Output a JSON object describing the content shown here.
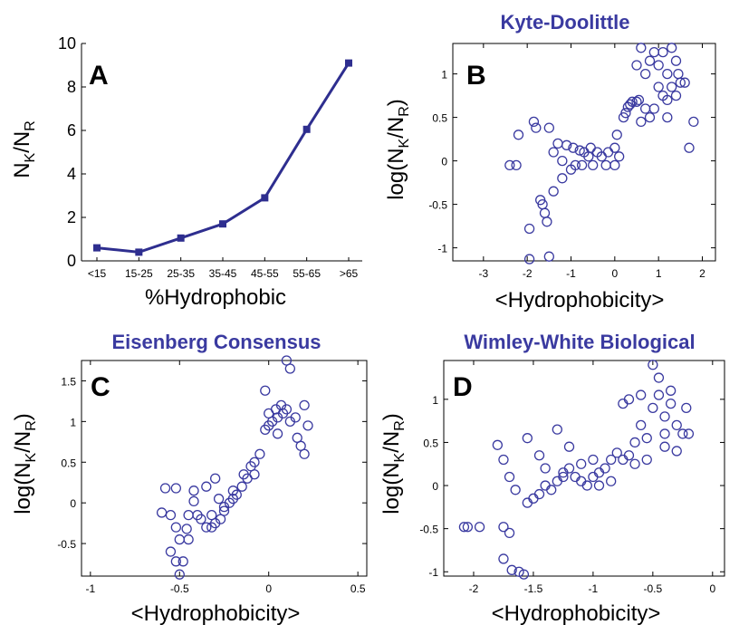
{
  "chart_data": [
    {
      "panel": "A",
      "type": "line",
      "title": "",
      "xlabel": "%Hydrophobic",
      "ylabel_main": "N",
      "ylabel_sub1": "K",
      "ylabel_sep": "/N",
      "ylabel_sub2": "R",
      "categories": [
        "<15",
        "15-25",
        "25-35",
        "35-45",
        "45-55",
        "55-65",
        ">65"
      ],
      "values": [
        0.6,
        0.4,
        1.05,
        1.7,
        2.9,
        6.05,
        9.1
      ],
      "ylim": [
        0,
        10
      ],
      "yticks": [
        "0",
        "2",
        "4",
        "6",
        "8",
        "10"
      ],
      "grid": false,
      "color": "#2e2e8f"
    },
    {
      "panel": "B",
      "type": "scatter",
      "title": "Kyte-Doolittle",
      "xlabel": "<Hydrophobicity>",
      "ylabel_pre": "log(N",
      "ylabel_sub1": "K",
      "ylabel_sep": "/N",
      "ylabel_sub2": "R",
      "ylabel_post": ")",
      "xlim": [
        -3.7,
        2.3
      ],
      "ylim": [
        -1.15,
        1.35
      ],
      "xticks": [
        "-3",
        "-2",
        "-1",
        "0",
        "1",
        "2"
      ],
      "yticks": [
        "-1",
        "-0.5",
        "0",
        "0.5",
        "1"
      ],
      "color": "#3a3aa0",
      "points": [
        [
          -1.95,
          -1.13
        ],
        [
          -1.95,
          -0.78
        ],
        [
          -1.5,
          -1.1
        ],
        [
          -1.55,
          -0.7
        ],
        [
          -1.6,
          -0.6
        ],
        [
          -1.65,
          -0.5
        ],
        [
          -1.7,
          -0.45
        ],
        [
          -1.4,
          -0.35
        ],
        [
          -1.2,
          -0.2
        ],
        [
          -1.0,
          -0.1
        ],
        [
          -0.75,
          -0.05
        ],
        [
          -0.5,
          -0.05
        ],
        [
          -0.2,
          -0.05
        ],
        [
          0.0,
          -0.05
        ],
        [
          -2.4,
          -0.05
        ],
        [
          -2.25,
          -0.05
        ],
        [
          -2.2,
          0.3
        ],
        [
          -1.85,
          0.45
        ],
        [
          -1.8,
          0.38
        ],
        [
          -1.5,
          0.38
        ],
        [
          -1.3,
          0.2
        ],
        [
          -1.1,
          0.18
        ],
        [
          -0.95,
          0.15
        ],
        [
          -0.8,
          0.12
        ],
        [
          -0.55,
          0.15
        ],
        [
          -0.4,
          0.1
        ],
        [
          -0.3,
          0.05
        ],
        [
          -0.15,
          0.1
        ],
        [
          0.0,
          0.15
        ],
        [
          0.05,
          0.3
        ],
        [
          0.2,
          0.5
        ],
        [
          0.25,
          0.55
        ],
        [
          0.3,
          0.62
        ],
        [
          0.35,
          0.65
        ],
        [
          0.4,
          0.68
        ],
        [
          0.5,
          0.68
        ],
        [
          0.55,
          0.7
        ],
        [
          0.6,
          0.45
        ],
        [
          0.7,
          0.6
        ],
        [
          0.8,
          0.5
        ],
        [
          0.9,
          0.6
        ],
        [
          1.0,
          0.85
        ],
        [
          1.1,
          0.75
        ],
        [
          1.2,
          0.7
        ],
        [
          1.3,
          0.85
        ],
        [
          1.4,
          0.75
        ],
        [
          1.5,
          0.9
        ],
        [
          1.6,
          0.9
        ],
        [
          1.7,
          0.15
        ],
        [
          1.8,
          0.45
        ],
        [
          0.5,
          1.1
        ],
        [
          0.6,
          1.3
        ],
        [
          0.7,
          1.0
        ],
        [
          0.8,
          1.15
        ],
        [
          0.9,
          1.25
        ],
        [
          1.0,
          1.1
        ],
        [
          1.1,
          1.25
        ],
        [
          1.2,
          1.0
        ],
        [
          1.3,
          1.3
        ],
        [
          1.4,
          1.15
        ],
        [
          1.45,
          1.0
        ],
        [
          1.2,
          0.5
        ],
        [
          -1.2,
          0.0
        ],
        [
          -0.6,
          0.05
        ],
        [
          -0.9,
          -0.05
        ],
        [
          -1.4,
          0.1
        ],
        [
          -0.7,
          0.1
        ],
        [
          0.1,
          0.05
        ]
      ]
    },
    {
      "panel": "C",
      "type": "scatter",
      "title": "Eisenberg Consensus",
      "xlabel": "<Hydrophobicity>",
      "ylabel_pre": "log(N",
      "ylabel_sub1": "K",
      "ylabel_sep": "/N",
      "ylabel_sub2": "R",
      "ylabel_post": ")",
      "xlim": [
        -1.05,
        0.55
      ],
      "ylim": [
        -0.9,
        1.75
      ],
      "xticks": [
        "-1",
        "-0.5",
        "0",
        "0.5"
      ],
      "yticks": [
        "-0.5",
        "0",
        "0.5",
        "1",
        "1.5"
      ],
      "color": "#3a3aa0",
      "points": [
        [
          -0.5,
          -0.88
        ],
        [
          -0.52,
          -0.72
        ],
        [
          -0.48,
          -0.72
        ],
        [
          -0.55,
          -0.6
        ],
        [
          -0.5,
          -0.45
        ],
        [
          -0.45,
          -0.45
        ],
        [
          -0.52,
          -0.3
        ],
        [
          -0.55,
          -0.15
        ],
        [
          -0.6,
          -0.12
        ],
        [
          -0.58,
          0.18
        ],
        [
          -0.52,
          0.18
        ],
        [
          -0.45,
          -0.15
        ],
        [
          -0.42,
          0.02
        ],
        [
          -0.4,
          -0.15
        ],
        [
          -0.38,
          -0.2
        ],
        [
          -0.35,
          -0.3
        ],
        [
          -0.32,
          -0.3
        ],
        [
          -0.3,
          -0.25
        ],
        [
          -0.27,
          -0.2
        ],
        [
          -0.25,
          -0.1
        ],
        [
          -0.22,
          0.0
        ],
        [
          -0.2,
          0.05
        ],
        [
          -0.18,
          0.1
        ],
        [
          -0.15,
          0.2
        ],
        [
          -0.12,
          0.3
        ],
        [
          -0.1,
          0.45
        ],
        [
          -0.08,
          0.5
        ],
        [
          -0.05,
          0.6
        ],
        [
          -0.02,
          0.9
        ],
        [
          0.0,
          0.95
        ],
        [
          0.02,
          1.0
        ],
        [
          0.05,
          1.05
        ],
        [
          0.08,
          1.1
        ],
        [
          0.1,
          1.15
        ],
        [
          0.12,
          1.0
        ],
        [
          0.15,
          1.05
        ],
        [
          0.18,
          0.7
        ],
        [
          0.2,
          0.6
        ],
        [
          0.22,
          0.95
        ],
        [
          0.1,
          1.75
        ],
        [
          0.12,
          1.65
        ],
        [
          -0.02,
          1.38
        ],
        [
          -0.3,
          0.3
        ],
        [
          -0.35,
          0.2
        ],
        [
          -0.42,
          0.15
        ],
        [
          -0.28,
          0.05
        ],
        [
          -0.2,
          0.15
        ],
        [
          -0.08,
          0.35
        ],
        [
          0.05,
          0.85
        ],
        [
          -0.25,
          -0.05
        ],
        [
          -0.32,
          -0.15
        ],
        [
          0.0,
          1.1
        ],
        [
          0.04,
          1.15
        ],
        [
          0.07,
          1.2
        ],
        [
          0.16,
          0.8
        ],
        [
          0.2,
          1.2
        ],
        [
          -0.14,
          0.35
        ],
        [
          -0.46,
          -0.32
        ]
      ]
    },
    {
      "panel": "D",
      "type": "scatter",
      "title": "Wimley-White Biological",
      "xlabel": "<Hydrophobicity>",
      "ylabel_pre": "log(N",
      "ylabel_sub1": "K",
      "ylabel_sep": "/N",
      "ylabel_sub2": "R",
      "ylabel_post": ")",
      "xlim": [
        -2.25,
        0.1
      ],
      "ylim": [
        -1.05,
        1.45
      ],
      "xticks": [
        "-2",
        "-1.5",
        "-1",
        "-0.5",
        "0"
      ],
      "yticks": [
        "-1",
        "-0.5",
        "0",
        "0.5",
        "1"
      ],
      "color": "#3a3aa0",
      "points": [
        [
          -2.08,
          -0.48
        ],
        [
          -2.05,
          -0.48
        ],
        [
          -1.95,
          -0.48
        ],
        [
          -1.75,
          -0.48
        ],
        [
          -1.7,
          -0.55
        ],
        [
          -1.75,
          -0.85
        ],
        [
          -1.68,
          -0.98
        ],
        [
          -1.62,
          -1.0
        ],
        [
          -1.58,
          -1.03
        ],
        [
          -1.65,
          -0.05
        ],
        [
          -1.7,
          0.1
        ],
        [
          -1.75,
          0.3
        ],
        [
          -1.8,
          0.47
        ],
        [
          -1.55,
          -0.2
        ],
        [
          -1.5,
          -0.15
        ],
        [
          -1.45,
          -0.1
        ],
        [
          -1.4,
          0.0
        ],
        [
          -1.35,
          -0.05
        ],
        [
          -1.3,
          0.05
        ],
        [
          -1.25,
          0.15
        ],
        [
          -1.2,
          0.2
        ],
        [
          -1.15,
          0.1
        ],
        [
          -1.1,
          0.05
        ],
        [
          -1.05,
          0.0
        ],
        [
          -1.0,
          0.1
        ],
        [
          -0.95,
          0.15
        ],
        [
          -0.9,
          0.2
        ],
        [
          -0.85,
          0.3
        ],
        [
          -0.8,
          0.38
        ],
        [
          -0.75,
          0.3
        ],
        [
          -0.7,
          0.35
        ],
        [
          -0.65,
          0.5
        ],
        [
          -0.6,
          0.7
        ],
        [
          -0.55,
          0.55
        ],
        [
          -0.5,
          0.9
        ],
        [
          -0.45,
          1.05
        ],
        [
          -0.4,
          0.8
        ],
        [
          -0.35,
          0.95
        ],
        [
          -0.3,
          0.7
        ],
        [
          -0.25,
          0.6
        ],
        [
          -0.2,
          0.6
        ],
        [
          -0.22,
          0.9
        ],
        [
          -0.5,
          1.4
        ],
        [
          -0.45,
          1.25
        ],
        [
          -0.6,
          1.05
        ],
        [
          -0.7,
          1.0
        ],
        [
          -0.75,
          0.95
        ],
        [
          -1.3,
          0.65
        ],
        [
          -1.45,
          0.35
        ],
        [
          -1.55,
          0.55
        ],
        [
          -1.2,
          0.45
        ],
        [
          -1.0,
          0.3
        ],
        [
          -0.85,
          0.05
        ],
        [
          -0.65,
          0.25
        ],
        [
          -0.55,
          0.3
        ],
        [
          -0.4,
          0.45
        ],
        [
          -1.4,
          0.2
        ],
        [
          -1.1,
          0.25
        ],
        [
          -0.95,
          0.0
        ],
        [
          -1.25,
          0.1
        ],
        [
          -0.3,
          0.4
        ],
        [
          -0.4,
          0.6
        ],
        [
          -0.35,
          1.1
        ]
      ]
    }
  ]
}
